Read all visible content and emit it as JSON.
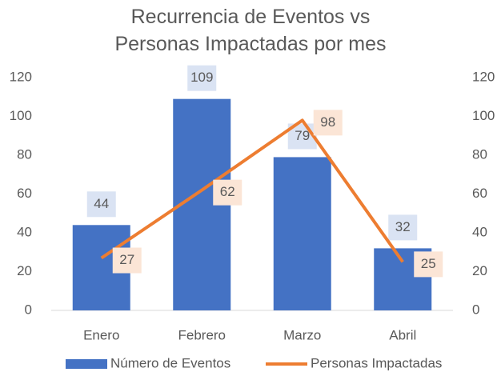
{
  "chart_data": {
    "type": "combo",
    "title": "Recurrencia de Eventos vs Personas Impactadas por mes",
    "categories": [
      "Enero",
      "Febrero",
      "Marzo",
      "Abril"
    ],
    "series": [
      {
        "name": "Número de Eventos",
        "type": "bar",
        "color": "#4472c4",
        "values": [
          44,
          109,
          79,
          32
        ]
      },
      {
        "name": "Personas Impactadas",
        "type": "line",
        "color": "#ed7d31",
        "axis": "y2",
        "values": [
          27,
          62,
          98,
          25
        ]
      }
    ],
    "ylim": [
      0,
      120
    ],
    "yticks": [
      0,
      20,
      40,
      60,
      80,
      100,
      120
    ],
    "y2lim": [
      0,
      120
    ],
    "y2ticks": [
      0,
      20,
      40,
      60,
      80,
      100,
      120
    ],
    "legend": "bottom"
  }
}
